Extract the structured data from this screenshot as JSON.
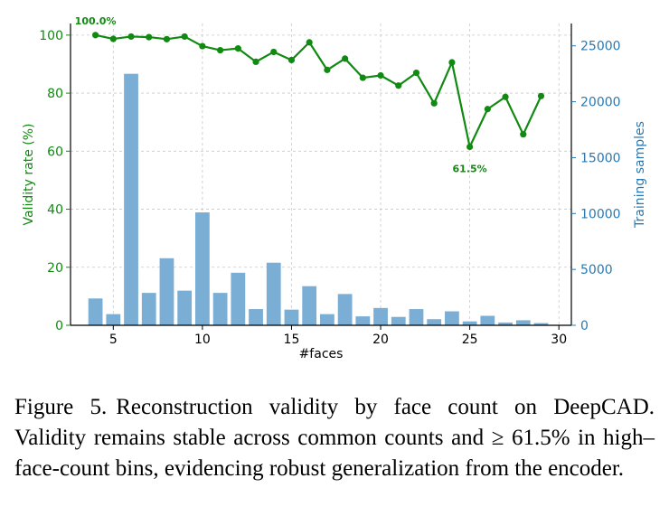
{
  "chart_data": {
    "type": "bar+line",
    "xlabel": "#faces",
    "ylabel_left": "Validity rate (%)",
    "ylabel_right": "Training samples",
    "xlim": [
      2.6,
      30.7
    ],
    "ylim_left": [
      0,
      104
    ],
    "ylim_right": [
      0,
      27000
    ],
    "x_ticks": [
      5,
      10,
      15,
      20,
      25,
      30
    ],
    "y_ticks_left": [
      0,
      20,
      40,
      60,
      80,
      100
    ],
    "y_ticks_right": [
      0,
      5000,
      10000,
      15000,
      20000,
      25000
    ],
    "grid": true,
    "colors": {
      "line": "#118a11",
      "bar": "#7aaed4",
      "right_axis": "#2b78b0",
      "grid": "#c8c8c8"
    },
    "bars": {
      "x": [
        4,
        5,
        6,
        7,
        8,
        9,
        10,
        11,
        12,
        13,
        14,
        15,
        16,
        17,
        18,
        19,
        20,
        21,
        22,
        23,
        24,
        25,
        26,
        27,
        28,
        29
      ],
      "values": [
        2400,
        1000,
        22500,
        2900,
        6000,
        3100,
        10100,
        2900,
        4700,
        1450,
        5600,
        1400,
        3500,
        1000,
        2800,
        800,
        1550,
        750,
        1450,
        550,
        1250,
        350,
        850,
        250,
        450,
        200
      ]
    },
    "line": {
      "x": [
        4,
        5,
        6,
        7,
        8,
        9,
        10,
        11,
        12,
        13,
        14,
        15,
        16,
        17,
        18,
        19,
        20,
        21,
        22,
        23,
        24,
        25,
        26,
        27,
        28,
        29
      ],
      "values": [
        100.0,
        98.7,
        99.5,
        99.3,
        98.6,
        99.5,
        96.2,
        94.8,
        95.4,
        90.8,
        94.2,
        91.4,
        97.5,
        88.0,
        91.9,
        85.3,
        86.1,
        82.6,
        87.0,
        76.5,
        90.6,
        61.5,
        74.5,
        78.7,
        65.8,
        79.0
      ]
    },
    "annotations": [
      {
        "text": "100.0%",
        "x": 4,
        "y": 100.0,
        "placement": "above"
      },
      {
        "text": "61.5%",
        "x": 25,
        "y": 61.5,
        "placement": "below"
      }
    ]
  },
  "caption": {
    "label": "Figure 5.",
    "text": "Reconstruction validity by face count on DeepCAD. Validity remains stable across common counts and ≥ 61.5% in high–face-count bins, evidencing robust generalization from the encoder."
  }
}
